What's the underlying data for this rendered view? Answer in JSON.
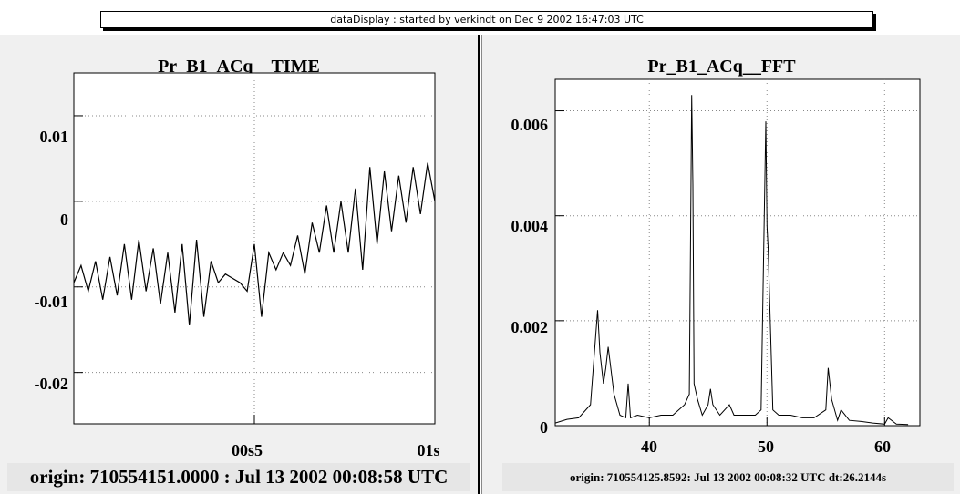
{
  "banner": "dataDisplay : started by verkindt on Dec  9 2002 16:47:03 UTC",
  "charts": {
    "left": {
      "title": "Pr_B1_ACq__TIME",
      "origin": "origin: 710554151.0000 : Jul 13 2002 00:08:58 UTC",
      "yticks": [
        "0.01",
        "0",
        "-0.01",
        "-0.02"
      ],
      "xticks": [
        "00s5",
        "01s"
      ]
    },
    "right": {
      "title": "Pr_B1_ACq__FFT",
      "origin": "origin: 710554125.8592: Jul 13 2002 00:08:32 UTC dt:26.2144s",
      "yticks": [
        "0.006",
        "0.004",
        "0.002",
        "0"
      ],
      "xticks": [
        "40",
        "50",
        "60"
      ]
    }
  },
  "chart_data": [
    {
      "type": "line",
      "title": "Pr_B1_ACq__TIME",
      "xlabel": "",
      "ylabel": "",
      "x_unit": "s",
      "xlim": [
        0.0,
        1.0
      ],
      "ylim": [
        -0.026,
        0.015
      ],
      "grid": true,
      "x": [
        0.0,
        0.02,
        0.04,
        0.06,
        0.08,
        0.1,
        0.12,
        0.14,
        0.16,
        0.18,
        0.2,
        0.22,
        0.24,
        0.26,
        0.28,
        0.3,
        0.32,
        0.34,
        0.36,
        0.38,
        0.4,
        0.42,
        0.44,
        0.46,
        0.48,
        0.5,
        0.52,
        0.54,
        0.56,
        0.58,
        0.6,
        0.62,
        0.64,
        0.66,
        0.68,
        0.7,
        0.72,
        0.74,
        0.76,
        0.78,
        0.8,
        0.82,
        0.84,
        0.86,
        0.88,
        0.9,
        0.92,
        0.94,
        0.96,
        0.98,
        1.0
      ],
      "y": [
        -0.0095,
        -0.0075,
        -0.0105,
        -0.007,
        -0.0115,
        -0.0065,
        -0.011,
        -0.005,
        -0.0115,
        -0.0045,
        -0.0105,
        -0.0055,
        -0.012,
        -0.006,
        -0.013,
        -0.005,
        -0.0145,
        -0.0045,
        -0.0135,
        -0.007,
        -0.0095,
        -0.0085,
        -0.009,
        -0.0095,
        -0.0105,
        -0.005,
        -0.0135,
        -0.006,
        -0.008,
        -0.006,
        -0.0075,
        -0.004,
        -0.0085,
        -0.0025,
        -0.006,
        -0.0005,
        -0.006,
        0.0,
        -0.006,
        0.0015,
        -0.008,
        0.004,
        -0.005,
        0.0035,
        -0.0035,
        0.003,
        -0.0025,
        0.004,
        -0.0015,
        0.0045,
        0.0
      ]
    },
    {
      "type": "line",
      "title": "Pr_B1_ACq__FFT",
      "xlabel": "",
      "ylabel": "",
      "xlim": [
        32.0,
        63.0
      ],
      "ylim": [
        0.0,
        0.0066
      ],
      "grid": true,
      "x": [
        32.0,
        33.0,
        34.0,
        35.0,
        35.6,
        35.8,
        36.1,
        36.3,
        36.5,
        37.0,
        37.5,
        38.0,
        38.2,
        38.4,
        39.0,
        40.0,
        41.0,
        42.0,
        43.0,
        43.4,
        43.6,
        43.7,
        43.8,
        44.1,
        44.5,
        45.0,
        45.2,
        45.4,
        46.0,
        46.8,
        47.2,
        48.0,
        48.5,
        49.0,
        49.5,
        49.9,
        50.0,
        50.1,
        50.5,
        51.0,
        52.0,
        53.0,
        54.0,
        55.0,
        55.2,
        55.5,
        56.0,
        56.3,
        57.0,
        58.0,
        59.0,
        60.0,
        60.3,
        61.0,
        62.0
      ],
      "y": [
        5e-05,
        0.00012,
        0.00015,
        0.0004,
        0.0022,
        0.0014,
        0.0008,
        0.0011,
        0.0015,
        0.0006,
        0.0002,
        0.00015,
        0.0008,
        0.00015,
        0.0002,
        0.00015,
        0.0002,
        0.0002,
        0.0004,
        0.0006,
        0.0063,
        0.0046,
        0.0008,
        0.0005,
        0.0002,
        0.0004,
        0.0007,
        0.0004,
        0.0002,
        0.0004,
        0.0002,
        0.0002,
        0.0002,
        0.0002,
        0.0003,
        0.0058,
        0.0038,
        0.0034,
        0.0003,
        0.0002,
        0.0002,
        0.00015,
        0.00015,
        0.0003,
        0.0011,
        0.0005,
        0.0001,
        0.0003,
        0.0001,
        8e-05,
        5e-05,
        3e-05,
        0.00015,
        3e-05,
        2e-05
      ]
    }
  ]
}
